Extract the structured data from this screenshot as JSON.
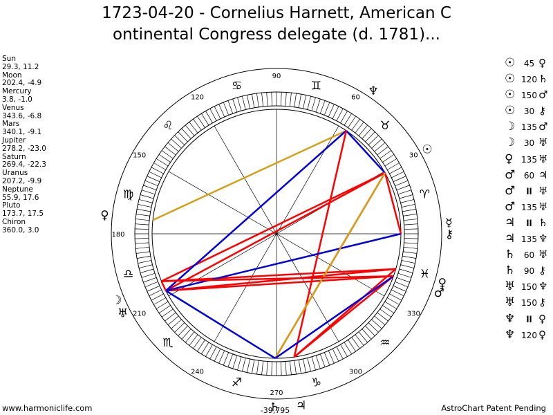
{
  "title_lines": [
    "1723-04-20 - Cornelius Harnett, American C",
    "ontinental Congress delegate (d. 1781)..."
  ],
  "planets": [
    {
      "name": "Sun",
      "pos": "29.3, 11.2"
    },
    {
      "name": "Moon",
      "pos": "202.4, -4.9"
    },
    {
      "name": "Mercury",
      "pos": "3.8, -1.0"
    },
    {
      "name": "Venus",
      "pos": "343.6, -6.8"
    },
    {
      "name": "Mars",
      "pos": "340.1, -9.1"
    },
    {
      "name": "Jupiter",
      "pos": "278.2, -23.0"
    },
    {
      "name": "Saturn",
      "pos": "269.4, -22.3"
    },
    {
      "name": "Uranus",
      "pos": "207.2, -9.9"
    },
    {
      "name": "Neptune",
      "pos": "55.9, 17.6"
    },
    {
      "name": "Pluto",
      "pos": "173.7, 17.5"
    },
    {
      "name": "Chiron",
      "pos": "360.0, 3.0"
    }
  ],
  "aspects": [
    {
      "p1": "☉",
      "angle": "45",
      "p2": "♀"
    },
    {
      "p1": "☉",
      "angle": "120",
      "p2": "♄"
    },
    {
      "p1": "☉",
      "angle": "150",
      "p2": "♂"
    },
    {
      "p1": "☉",
      "angle": "30",
      "p2": "⚷"
    },
    {
      "p1": "☽",
      "angle": "135",
      "p2": "♂"
    },
    {
      "p1": "☽",
      "angle": "30",
      "p2": "♅"
    },
    {
      "p1": "♀",
      "angle": "135",
      "p2": "♅"
    },
    {
      "p1": "♂",
      "angle": "60",
      "p2": "♃"
    },
    {
      "p1": "♂",
      "angle": "ll",
      "p2": "♅"
    },
    {
      "p1": "♂",
      "angle": "135",
      "p2": "♅"
    },
    {
      "p1": "♃",
      "angle": "ll",
      "p2": "♄"
    },
    {
      "p1": "♃",
      "angle": "135",
      "p2": "♆"
    },
    {
      "p1": "♄",
      "angle": "60",
      "p2": "♅"
    },
    {
      "p1": "♄",
      "angle": "90",
      "p2": "⚷"
    },
    {
      "p1": "♅",
      "angle": "150",
      "p2": "♆"
    },
    {
      "p1": "♅",
      "angle": "150",
      "p2": "⚷"
    },
    {
      "p1": "♆",
      "angle": "ll",
      "p2": "♀"
    },
    {
      "p1": "♆",
      "angle": "120",
      "p2": "♀"
    }
  ],
  "wheel": {
    "degree_labels": [
      "90",
      "60",
      "30",
      "330",
      "300",
      "270",
      "240",
      "210",
      "180",
      "150",
      "120"
    ],
    "bottom_readout": "-39,795",
    "zodiac_signs": [
      "♈",
      "♉",
      "♊",
      "♋",
      "♌",
      "♍",
      "♎",
      "♏",
      "♐",
      "♑",
      "♒",
      "♓"
    ],
    "planet_glyphs": [
      {
        "glyph": "☉",
        "lon": 29.3
      },
      {
        "glyph": "☽",
        "lon": 202.4
      },
      {
        "glyph": "☿",
        "lon": 3.8
      },
      {
        "glyph": "♀",
        "lon": 343.6
      },
      {
        "glyph": "♂",
        "lon": 340.1
      },
      {
        "glyph": "♃",
        "lon": 278.2
      },
      {
        "glyph": "♄",
        "lon": 269.4
      },
      {
        "glyph": "♅",
        "lon": 207.2
      },
      {
        "glyph": "♆",
        "lon": 55.9
      },
      {
        "glyph": "♀",
        "lon": 173.7
      },
      {
        "glyph": "⚷",
        "lon": 360.0
      }
    ],
    "aspect_lines": [
      {
        "a": 29.3,
        "b": 55.9,
        "color": "#0000dd"
      },
      {
        "a": 29.3,
        "b": 202.4,
        "color": "#ff0000"
      },
      {
        "a": 29.3,
        "b": 207.2,
        "color": "#ff0000"
      },
      {
        "a": 29.3,
        "b": 269.4,
        "color": "#ff0000"
      },
      {
        "a": 55.9,
        "b": 173.7,
        "color": "#d4a017"
      },
      {
        "a": 55.9,
        "b": 207.2,
        "color": "#0000dd"
      },
      {
        "a": 55.9,
        "b": 278.2,
        "color": "#ff0000"
      },
      {
        "a": 340.1,
        "b": 278.2,
        "color": "#ff0000"
      },
      {
        "a": 340.1,
        "b": 207.2,
        "color": "#ff0000"
      },
      {
        "a": 343.6,
        "b": 202.4,
        "color": "#ff0000"
      },
      {
        "a": 343.6,
        "b": 207.2,
        "color": "#ff0000"
      },
      {
        "a": 343.6,
        "b": 278.2,
        "color": "#ff0000"
      },
      {
        "a": 360.0,
        "b": 207.2,
        "color": "#0000dd"
      },
      {
        "a": 360.0,
        "b": 29.3,
        "color": "#ff0000"
      },
      {
        "a": 29.3,
        "b": 269.4,
        "color": "#d4a017"
      },
      {
        "a": 207.2,
        "b": 269.4,
        "color": "#0000dd"
      },
      {
        "a": 340.1,
        "b": 269.4,
        "color": "#0000dd"
      },
      {
        "a": 207.2,
        "b": 202.4,
        "color": "#ff0000"
      },
      {
        "a": 340.1,
        "b": 202.4,
        "color": "#ff0000"
      }
    ]
  },
  "footer": {
    "left": "www.harmoniclife.com",
    "right": "AstroChart Patent Pending"
  }
}
